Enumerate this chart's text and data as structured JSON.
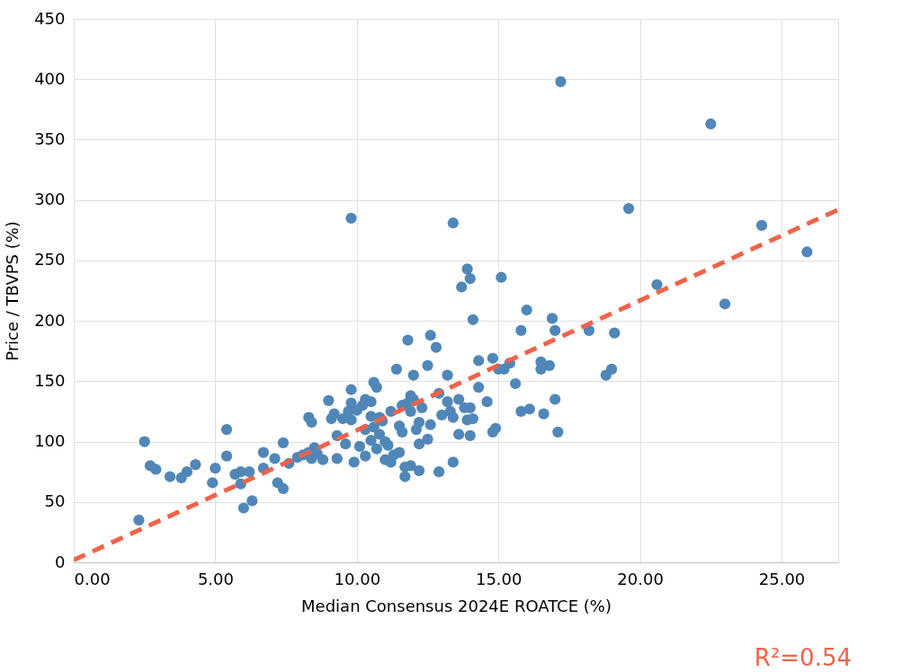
{
  "chart_data": {
    "type": "scatter",
    "xlabel": "Median Consensus 2024E ROATCE (%)",
    "ylabel": "Price / TBVPS (%)",
    "xlim": [
      0,
      27
    ],
    "ylim": [
      0,
      450
    ],
    "xticks": [
      {
        "value": 0,
        "label": "0.00"
      },
      {
        "value": 5,
        "label": "5.00"
      },
      {
        "value": 10,
        "label": "10.00"
      },
      {
        "value": 15,
        "label": "15.00"
      },
      {
        "value": 20,
        "label": "20.00"
      },
      {
        "value": 25,
        "label": "25.00"
      }
    ],
    "yticks": [
      0,
      50,
      100,
      150,
      200,
      250,
      300,
      350,
      400,
      450
    ],
    "grid": true,
    "annotations": [
      "R²=0.54"
    ],
    "series": [
      {
        "color": "#5087b8",
        "marker": "circle",
        "x": [
          2.3,
          2.5,
          2.7,
          2.9,
          3.4,
          3.8,
          4.0,
          4.3,
          4.9,
          5.0,
          5.4,
          5.4,
          5.7,
          5.9,
          5.9,
          6.0,
          6.2,
          6.3,
          6.7,
          6.7,
          7.1,
          7.2,
          7.4,
          7.4,
          7.6,
          7.9,
          8.1,
          8.3,
          8.3,
          8.4,
          8.4,
          8.5,
          8.6,
          8.8,
          9.0,
          9.1,
          9.2,
          9.3,
          9.3,
          9.5,
          9.6,
          9.7,
          9.8,
          9.8,
          9.8,
          9.8,
          9.9,
          10.0,
          10.1,
          10.2,
          10.3,
          10.3,
          10.3,
          10.5,
          10.5,
          10.5,
          10.6,
          10.6,
          10.7,
          10.7,
          10.8,
          10.8,
          10.9,
          11.0,
          11.0,
          11.1,
          11.2,
          11.2,
          11.3,
          11.4,
          11.5,
          11.5,
          11.6,
          11.6,
          11.7,
          11.7,
          11.8,
          11.8,
          11.9,
          11.9,
          11.9,
          12.0,
          12.0,
          12.1,
          12.2,
          12.2,
          12.2,
          12.3,
          12.5,
          12.5,
          12.6,
          12.6,
          12.8,
          12.9,
          12.9,
          13.0,
          13.2,
          13.2,
          13.3,
          13.4,
          13.4,
          13.4,
          13.6,
          13.6,
          13.7,
          13.8,
          13.9,
          13.9,
          14.0,
          14.0,
          14.0,
          14.1,
          14.1,
          14.3,
          14.3,
          14.6,
          14.8,
          14.8,
          14.9,
          15.0,
          15.1,
          15.2,
          15.4,
          15.6,
          15.8,
          15.8,
          16.0,
          16.1,
          16.5,
          16.5,
          16.6,
          16.8,
          16.9,
          17.0,
          17.0,
          17.1,
          17.2,
          18.2,
          18.8,
          19.0,
          19.1,
          19.6,
          20.6,
          22.5,
          23.0,
          24.3,
          25.9
        ],
        "values": [
          35,
          100,
          80,
          77,
          71,
          70,
          75,
          81,
          66,
          78,
          88,
          110,
          73,
          65,
          75,
          45,
          75,
          51,
          78,
          91,
          86,
          66,
          61,
          99,
          82,
          87,
          89,
          91,
          120,
          116,
          86,
          95,
          90,
          85,
          134,
          119,
          123,
          105,
          86,
          119,
          98,
          125,
          118,
          285,
          143,
          132,
          83,
          126,
          96,
          130,
          88,
          110,
          135,
          133,
          121,
          101,
          149,
          112,
          145,
          94,
          106,
          120,
          117,
          85,
          100,
          97,
          125,
          83,
          89,
          160,
          91,
          113,
          130,
          108,
          71,
          79,
          132,
          184,
          80,
          138,
          125,
          135,
          155,
          110,
          98,
          116,
          76,
          128,
          102,
          163,
          188,
          114,
          178,
          75,
          140,
          122,
          155,
          133,
          125,
          281,
          120,
          83,
          106,
          135,
          228,
          128,
          243,
          118,
          235,
          105,
          128,
          201,
          119,
          145,
          167,
          133,
          169,
          108,
          111,
          160,
          236,
          160,
          165,
          148,
          125,
          192,
          209,
          127,
          166,
          160,
          123,
          163,
          202,
          192,
          135,
          108,
          398,
          192,
          155,
          160,
          190,
          293,
          230,
          363,
          214,
          279,
          257
        ]
      },
      {
        "type": "line",
        "color": "#f0634a",
        "line_style": "dashed",
        "x": [
          0,
          27
        ],
        "values": [
          2,
          292
        ]
      }
    ]
  }
}
